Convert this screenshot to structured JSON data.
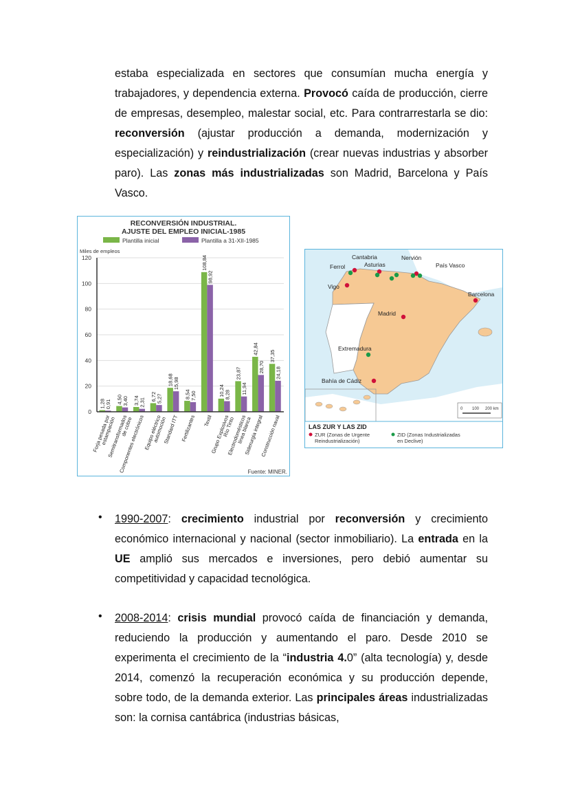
{
  "paragraph1": [
    {
      "t": "estaba especializada en sectores que consumían mucha energía y trabajadores, y dependencia externa. "
    },
    {
      "t": "Provocó",
      "b": true
    },
    {
      "t": " caída de producción, cierre de empresas, desempleo, malestar social, etc. Para contrarrestarla se dio: "
    },
    {
      "t": "reconversión",
      "b": true
    },
    {
      "t": " (ajustar producción a demanda, modernización y especialización) y "
    },
    {
      "t": "reindustrialización",
      "b": true
    },
    {
      "t": " (crear nuevas industrias y absorber paro). Las "
    },
    {
      "t": "zonas más industrializadas",
      "b": true
    },
    {
      "t": " son Madrid, Barcelona y País Vasco."
    }
  ],
  "bullet1": [
    {
      "t": "1990-2007",
      "u": true
    },
    {
      "t": ": "
    },
    {
      "t": "crecimiento",
      "b": true
    },
    {
      "t": " industrial por "
    },
    {
      "t": "reconversión",
      "b": true
    },
    {
      "t": " y crecimiento económico internacional y nacional (sector inmobiliario). La "
    },
    {
      "t": "entrada",
      "b": true
    },
    {
      "t": " en la "
    },
    {
      "t": "UE",
      "b": true
    },
    {
      "t": " amplió sus mercados e inversiones, pero debió aumentar su competitividad y capacidad tecnológica."
    }
  ],
  "bullet2": [
    {
      "t": "2008-2014",
      "u": true
    },
    {
      "t": ": "
    },
    {
      "t": "crisis mundial",
      "b": true
    },
    {
      "t": " provocó caída de financiación y demanda, reduciendo la producción y aumentando el paro. Desde 2010 se experimenta el crecimiento de la “"
    },
    {
      "t": "industria 4.",
      "b": true
    },
    {
      "t": "0” (alta tecnología) y, desde 2014, comenzó la recuperación económica y su producción depende, sobre todo, de la demanda exterior. Las "
    },
    {
      "t": "principales áreas",
      "b": true
    },
    {
      "t": " industrializadas son: la cornisa cantábrica (industrias básicas,"
    }
  ],
  "bullet_glyph": "•",
  "chart_data": {
    "type": "bar",
    "title": "RECONVERSIÓN INDUSTRIAL.",
    "subtitle": "AJUSTE DEL EMPLEO INICIAL-1985",
    "ylabel": "Miles de empleos",
    "ylim": [
      0,
      120
    ],
    "yticks": [
      "0",
      "20",
      "40",
      "60",
      "80",
      "100",
      "120"
    ],
    "grid": true,
    "legend_placement": "top",
    "source": "Fuente: MINER.",
    "categories": [
      [
        "Forja pesada por",
        "estampación"
      ],
      [
        "Semitransformados",
        "de cobre"
      ],
      [
        "Componentes electrónicos"
      ],
      [
        "Equipo eléctrico",
        "automoción"
      ],
      [
        "Standard ITT"
      ],
      [
        "Fertilizantes"
      ],
      [
        "Textil"
      ],
      [
        "Grupo Explosivos",
        "Río Tinto"
      ],
      [
        "Electrodomésticos",
        "línea blanca"
      ],
      [
        "Siderurgia integral"
      ],
      [
        "Construcción naval"
      ]
    ],
    "series": [
      {
        "name": "Plantilla inicial",
        "color": "#7ab648",
        "values": [
          1.28,
          4.5,
          3.74,
          6.72,
          18.68,
          8.54,
          108.84,
          10.24,
          23.87,
          42.84,
          37.35
        ],
        "labels": [
          "1,28",
          "4,50",
          "3,74",
          "6,72",
          "18,68",
          "8,54",
          "108,84",
          "10,24",
          "23,87",
          "42,84",
          "37,35"
        ]
      },
      {
        "name": "Plantilla a 31-XII-1985",
        "color": "#8b63a8",
        "values": [
          0.91,
          3.4,
          2.31,
          5.27,
          15.98,
          7.5,
          98.92,
          8.28,
          11.94,
          28.7,
          24.18
        ],
        "labels": [
          "0,91",
          "3,40",
          "2,31",
          "5,27",
          "15,98",
          "7,50",
          "98,92",
          "8,28",
          "11,94",
          "28,70",
          "24,18"
        ]
      }
    ]
  },
  "map": {
    "title": "LAS ZUR Y LAS ZID",
    "legend": [
      {
        "label": [
          "ZUR (Zonas de Urgente",
          "Reindustrialización)"
        ],
        "color": "#d0103a"
      },
      {
        "label": [
          "ZID (Zonas Industrializadas",
          "en Declive)"
        ],
        "color": "#1a9a48"
      }
    ],
    "places": [
      "Ferrol",
      "Cantabria",
      "Asturias",
      "Nervión",
      "País Vasco",
      "Vigo",
      "Barcelona",
      "Madrid",
      "Extremadura",
      "Bahía de Cádiz"
    ],
    "scale": [
      "0",
      "100",
      "200 km"
    ],
    "colors": {
      "spain": "#f6c994",
      "sea": "#d9eef7",
      "portugal": "#ffffff"
    }
  }
}
